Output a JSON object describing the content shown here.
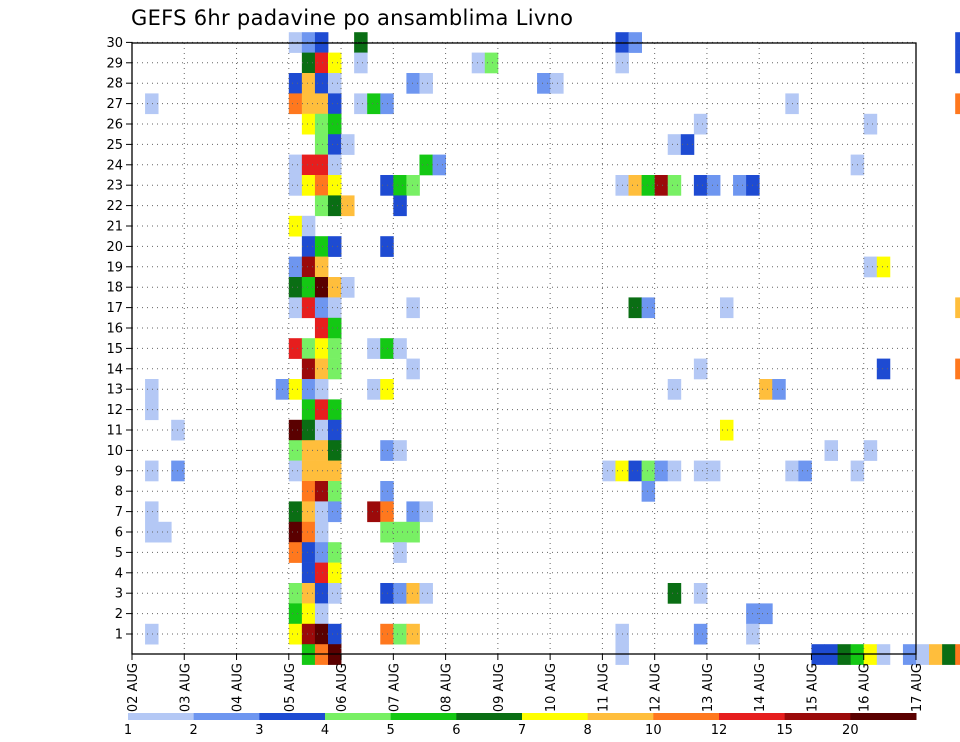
{
  "chart_data": {
    "type": "heatmap",
    "title": "GEFS 6hr padavine po ansamblima Livno",
    "xlabel": "",
    "ylabel": "",
    "x_tick_labels": [
      "02 AUG",
      "03 AUG",
      "04 AUG",
      "05 AUG",
      "06 AUG",
      "07 AUG",
      "08 AUG",
      "09 AUG",
      "10 AUG",
      "11 AUG",
      "12 AUG",
      "13 AUG",
      "14 AUG",
      "15 AUG",
      "16 AUG",
      "17 AUG"
    ],
    "y_tick_labels": [
      "1",
      "2",
      "3",
      "4",
      "5",
      "6",
      "7",
      "8",
      "9",
      "10",
      "11",
      "12",
      "13",
      "14",
      "15",
      "16",
      "17",
      "18",
      "19",
      "20",
      "21",
      "22",
      "23",
      "24",
      "25",
      "26",
      "27",
      "28",
      "29",
      "30"
    ],
    "grid": true,
    "colorbar": {
      "levels": [
        "1",
        "2",
        "3",
        "4",
        "5",
        "6",
        "7",
        "8",
        "10",
        "12",
        "15",
        "20"
      ],
      "colors": [
        "#b4c8f5",
        "#6e96f0",
        "#1e4bd2",
        "#78f064",
        "#14c814",
        "#0a6e14",
        "#ffff00",
        "#ffbe3c",
        "#ff781e",
        "#e61e1e",
        "#9b0a0a",
        "#5a0000"
      ]
    },
    "cells": [
      [
        3,
        30,
        0
      ],
      [
        3.25,
        30,
        1
      ],
      [
        3.5,
        30,
        2
      ],
      [
        4.25,
        30,
        5
      ],
      [
        9.25,
        30,
        2
      ],
      [
        9.5,
        30,
        1
      ],
      [
        15.75,
        30,
        2
      ],
      [
        3.25,
        29,
        5
      ],
      [
        3.5,
        29,
        9
      ],
      [
        3.75,
        29,
        6
      ],
      [
        4.25,
        29,
        0
      ],
      [
        6.5,
        29,
        0
      ],
      [
        6.75,
        29,
        3
      ],
      [
        9.25,
        29,
        0
      ],
      [
        15.75,
        29,
        2
      ],
      [
        3,
        28,
        2
      ],
      [
        3.25,
        28,
        7
      ],
      [
        3.5,
        28,
        2
      ],
      [
        3.75,
        28,
        0
      ],
      [
        5.25,
        28,
        1
      ],
      [
        5.5,
        28,
        0
      ],
      [
        7.75,
        28,
        1
      ],
      [
        8,
        28,
        0
      ],
      [
        0.25,
        27,
        0
      ],
      [
        3,
        27,
        8
      ],
      [
        3.25,
        27,
        7
      ],
      [
        3.5,
        27,
        7
      ],
      [
        3.75,
        27,
        2
      ],
      [
        4.25,
        27,
        0
      ],
      [
        4.5,
        27,
        4
      ],
      [
        4.75,
        27,
        1
      ],
      [
        12.5,
        27,
        0
      ],
      [
        15.75,
        27,
        8
      ],
      [
        16,
        27,
        0
      ],
      [
        3.25,
        26,
        6
      ],
      [
        3.5,
        26,
        3
      ],
      [
        3.75,
        26,
        4
      ],
      [
        10.75,
        26,
        0
      ],
      [
        14,
        26,
        0
      ],
      [
        3.5,
        25,
        3
      ],
      [
        3.75,
        25,
        2
      ],
      [
        4,
        25,
        0
      ],
      [
        10.25,
        25,
        0
      ],
      [
        10.5,
        25,
        2
      ],
      [
        3,
        24,
        0
      ],
      [
        3.25,
        24,
        9
      ],
      [
        3.5,
        24,
        9
      ],
      [
        3.75,
        24,
        0
      ],
      [
        5.5,
        24,
        4
      ],
      [
        5.75,
        24,
        1
      ],
      [
        13.75,
        24,
        0
      ],
      [
        3,
        23,
        0
      ],
      [
        3.25,
        23,
        6
      ],
      [
        3.5,
        23,
        8
      ],
      [
        3.75,
        23,
        6
      ],
      [
        4.75,
        23,
        2
      ],
      [
        5,
        23,
        4
      ],
      [
        5.25,
        23,
        3
      ],
      [
        9.25,
        23,
        0
      ],
      [
        9.5,
        23,
        7
      ],
      [
        9.75,
        23,
        4
      ],
      [
        10,
        23,
        10
      ],
      [
        10.25,
        23,
        3
      ],
      [
        10.75,
        23,
        2
      ],
      [
        11,
        23,
        1
      ],
      [
        11.5,
        23,
        1
      ],
      [
        11.75,
        23,
        2
      ],
      [
        3.5,
        22,
        3
      ],
      [
        3.75,
        22,
        5
      ],
      [
        4,
        22,
        7
      ],
      [
        5,
        22,
        2
      ],
      [
        3,
        21,
        6
      ],
      [
        3.25,
        21,
        0
      ],
      [
        3.25,
        20,
        2
      ],
      [
        3.5,
        20,
        4
      ],
      [
        3.75,
        20,
        2
      ],
      [
        4.75,
        20,
        2
      ],
      [
        3,
        19,
        1
      ],
      [
        3.25,
        19,
        10
      ],
      [
        3.5,
        19,
        7
      ],
      [
        14,
        19,
        0
      ],
      [
        14.25,
        19,
        6
      ],
      [
        3,
        18,
        5
      ],
      [
        3.25,
        18,
        4
      ],
      [
        3.5,
        18,
        11
      ],
      [
        3.75,
        18,
        7
      ],
      [
        4,
        18,
        0
      ],
      [
        3,
        17,
        0
      ],
      [
        3.25,
        17,
        9
      ],
      [
        3.5,
        17,
        1
      ],
      [
        3.75,
        17,
        0
      ],
      [
        5.25,
        17,
        0
      ],
      [
        9.5,
        17,
        5
      ],
      [
        9.75,
        17,
        1
      ],
      [
        11.25,
        17,
        0
      ],
      [
        15.75,
        17,
        7
      ],
      [
        3.5,
        16,
        9
      ],
      [
        3.75,
        16,
        4
      ],
      [
        3,
        15,
        9
      ],
      [
        3.25,
        15,
        3
      ],
      [
        3.5,
        15,
        6
      ],
      [
        3.75,
        15,
        3
      ],
      [
        4.5,
        15,
        0
      ],
      [
        4.75,
        15,
        4
      ],
      [
        5,
        15,
        0
      ],
      [
        3.25,
        14,
        10
      ],
      [
        3.5,
        14,
        7
      ],
      [
        3.75,
        14,
        3
      ],
      [
        5.25,
        14,
        0
      ],
      [
        10.75,
        14,
        0
      ],
      [
        14.25,
        14,
        2
      ],
      [
        15.75,
        14,
        8
      ],
      [
        16,
        14,
        0
      ],
      [
        0.25,
        13,
        0
      ],
      [
        2.75,
        13,
        1
      ],
      [
        3,
        13,
        6
      ],
      [
        3.25,
        13,
        1
      ],
      [
        3.5,
        13,
        0
      ],
      [
        4.5,
        13,
        0
      ],
      [
        4.75,
        13,
        6
      ],
      [
        10.25,
        13,
        0
      ],
      [
        12,
        13,
        7
      ],
      [
        12.25,
        13,
        1
      ],
      [
        0.25,
        12,
        0
      ],
      [
        3.25,
        12,
        4
      ],
      [
        3.5,
        12,
        9
      ],
      [
        3.75,
        12,
        4
      ],
      [
        0.75,
        11,
        0
      ],
      [
        3,
        11,
        11
      ],
      [
        3.25,
        11,
        5
      ],
      [
        3.5,
        11,
        0
      ],
      [
        3.75,
        11,
        2
      ],
      [
        11.25,
        11,
        6
      ],
      [
        3,
        10,
        3
      ],
      [
        3.25,
        10,
        7
      ],
      [
        3.5,
        10,
        7
      ],
      [
        3.75,
        10,
        5
      ],
      [
        4.75,
        10,
        1
      ],
      [
        5,
        10,
        0
      ],
      [
        13.25,
        10,
        0
      ],
      [
        14,
        10,
        0
      ],
      [
        0.25,
        9,
        0
      ],
      [
        0.75,
        9,
        1
      ],
      [
        3,
        9,
        0
      ],
      [
        3.25,
        9,
        7
      ],
      [
        3.5,
        9,
        7
      ],
      [
        3.75,
        9,
        7
      ],
      [
        9,
        9,
        0
      ],
      [
        9.25,
        9,
        6
      ],
      [
        9.5,
        9,
        2
      ],
      [
        9.75,
        9,
        3
      ],
      [
        10,
        9,
        1
      ],
      [
        10.25,
        9,
        0
      ],
      [
        10.75,
        9,
        0
      ],
      [
        11,
        9,
        0
      ],
      [
        12.5,
        9,
        0
      ],
      [
        12.75,
        9,
        1
      ],
      [
        13.75,
        9,
        0
      ],
      [
        3.25,
        8,
        8
      ],
      [
        3.5,
        8,
        10
      ],
      [
        3.75,
        8,
        3
      ],
      [
        4.75,
        8,
        1
      ],
      [
        9.75,
        8,
        1
      ],
      [
        0.25,
        7,
        0
      ],
      [
        3,
        7,
        5
      ],
      [
        3.25,
        7,
        7
      ],
      [
        3.5,
        7,
        0
      ],
      [
        3.75,
        7,
        1
      ],
      [
        4.5,
        7,
        10
      ],
      [
        4.75,
        7,
        8
      ],
      [
        5.25,
        7,
        1
      ],
      [
        5.5,
        7,
        0
      ],
      [
        0.25,
        6,
        0
      ],
      [
        0.5,
        6,
        0
      ],
      [
        3,
        6,
        11
      ],
      [
        3.25,
        6,
        8
      ],
      [
        3.5,
        6,
        0
      ],
      [
        4.75,
        6,
        3
      ],
      [
        5,
        6,
        3
      ],
      [
        5.25,
        6,
        3
      ],
      [
        3,
        5,
        8
      ],
      [
        3.25,
        5,
        2
      ],
      [
        3.5,
        5,
        1
      ],
      [
        3.75,
        5,
        3
      ],
      [
        5,
        5,
        0
      ],
      [
        3.25,
        4,
        2
      ],
      [
        3.5,
        4,
        9
      ],
      [
        3.75,
        4,
        6
      ],
      [
        3,
        3,
        3
      ],
      [
        3.25,
        3,
        7
      ],
      [
        3.5,
        3,
        2
      ],
      [
        3.75,
        3,
        0
      ],
      [
        4.75,
        3,
        2
      ],
      [
        5,
        3,
        1
      ],
      [
        5.25,
        3,
        7
      ],
      [
        5.5,
        3,
        0
      ],
      [
        10.25,
        3,
        5
      ],
      [
        10.75,
        3,
        0
      ],
      [
        3,
        2,
        4
      ],
      [
        3.25,
        2,
        6
      ],
      [
        3.5,
        2,
        0
      ],
      [
        11.75,
        2,
        1
      ],
      [
        12,
        2,
        1
      ],
      [
        0.25,
        1,
        0
      ],
      [
        3,
        1,
        6
      ],
      [
        3.25,
        1,
        10
      ],
      [
        3.5,
        1,
        11
      ],
      [
        3.75,
        1,
        2
      ],
      [
        4.75,
        1,
        8
      ],
      [
        5,
        1,
        3
      ],
      [
        5.25,
        1,
        7
      ],
      [
        9.25,
        1,
        0
      ],
      [
        10.75,
        1,
        1
      ],
      [
        11.75,
        1,
        0
      ],
      [
        3.25,
        0,
        4
      ],
      [
        3.5,
        0,
        8
      ],
      [
        3.75,
        0,
        11
      ],
      [
        9.25,
        0,
        0
      ],
      [
        13,
        0,
        2
      ],
      [
        13.25,
        0,
        2
      ],
      [
        13.5,
        0,
        5
      ],
      [
        13.75,
        0,
        4
      ],
      [
        14,
        0,
        6
      ],
      [
        14.25,
        0,
        0
      ],
      [
        14.75,
        0,
        1
      ],
      [
        15,
        0,
        0
      ],
      [
        15.25,
        0,
        7
      ],
      [
        15.5,
        0,
        5
      ],
      [
        15.75,
        0,
        8
      ]
    ]
  }
}
